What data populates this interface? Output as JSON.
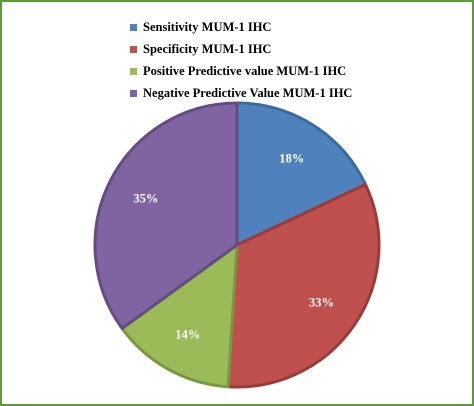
{
  "chart_data": {
    "type": "pie",
    "title": "",
    "slices": [
      {
        "label": "Sensitivity MUM-1 IHC",
        "value": 18,
        "display": "18%",
        "color": "#4f81bd",
        "edge": "#3a6a9e"
      },
      {
        "label": "Specificity MUM-1 IHC",
        "value": 33,
        "display": "33%",
        "color": "#c0504d",
        "edge": "#9a3b39"
      },
      {
        "label": "Positive Predictive value MUM-1 IHC",
        "value": 14,
        "display": "14%",
        "color": "#9bbb59",
        "edge": "#7a9842"
      },
      {
        "label": "Negative Predictive Value MUM-1 IHC",
        "value": 35,
        "display": "35%",
        "color": "#8064a2",
        "edge": "#634d80"
      }
    ],
    "legend_position": "top",
    "start_angle": "12 o'clock, clockwise"
  },
  "frame_color": "#5c9b3a"
}
